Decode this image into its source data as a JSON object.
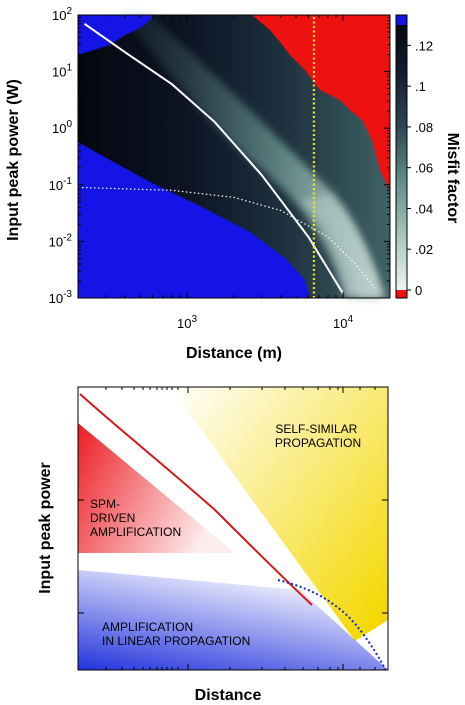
{
  "chart_data": [
    {
      "type": "heatmap",
      "title": "",
      "xlabel": "Distance (m)",
      "ylabel": "Input peak power (W)",
      "x_scale": "log",
      "y_scale": "log",
      "xlim": [
        200,
        20000
      ],
      "ylim": [
        0.001,
        100
      ],
      "x_tick_labels": [
        "10^3",
        "10^4"
      ],
      "y_tick_labels": [
        "10^-3",
        "10^-2",
        "10^-1",
        "10^0",
        "10^1",
        "10^2"
      ],
      "colorbar": {
        "label": "Misfit factor",
        "range": [
          0,
          0.13
        ],
        "tick_labels": [
          "0",
          ".02",
          ".04",
          ".06",
          ".08",
          ".1",
          ".12"
        ],
        "tick_values": [
          0,
          0.02,
          0.04,
          0.06,
          0.08,
          0.1,
          0.12
        ],
        "colors": [
          "#f0f4f2",
          "#a9c7c0",
          "#5d8a85",
          "#2b4650",
          "#141c30",
          "#060812"
        ],
        "under_color": "#ee1111",
        "over_color": "#1414e6"
      },
      "series": [
        {
          "style": "white solid curve",
          "x": [
            220,
            400,
            800,
            1500,
            3000,
            6000,
            10000
          ],
          "y": [
            70,
            22,
            6,
            1.3,
            0.15,
            0.012,
            0.0012
          ]
        },
        {
          "style": "white dotted curve",
          "x": [
            200,
            800,
            2000,
            4000,
            8000,
            12000,
            16000
          ],
          "y": [
            0.09,
            0.08,
            0.06,
            0.035,
            0.012,
            0.004,
            0.0015
          ]
        },
        {
          "style": "yellow dotted vertical line",
          "x": [
            6500,
            6500
          ],
          "y": [
            0.001,
            100
          ]
        }
      ]
    },
    {
      "type": "diagram",
      "title": "",
      "xlabel": "Distance",
      "ylabel": "Input peak power",
      "x_scale": "log",
      "y_scale": "log",
      "regions": [
        {
          "label": "SELF-SIMILAR\nPROPAGATION",
          "color": "#f4d800"
        },
        {
          "label": "SPM-\nDRIVEN\nAMPLIFICATION",
          "color": "#ec1c24"
        },
        {
          "label": "AMPLIFICATION\nIN LINEAR PROPAGATION",
          "color": "#2233dd"
        }
      ],
      "curves": [
        {
          "style": "red solid curve"
        },
        {
          "style": "blue dotted curve"
        }
      ]
    }
  ]
}
